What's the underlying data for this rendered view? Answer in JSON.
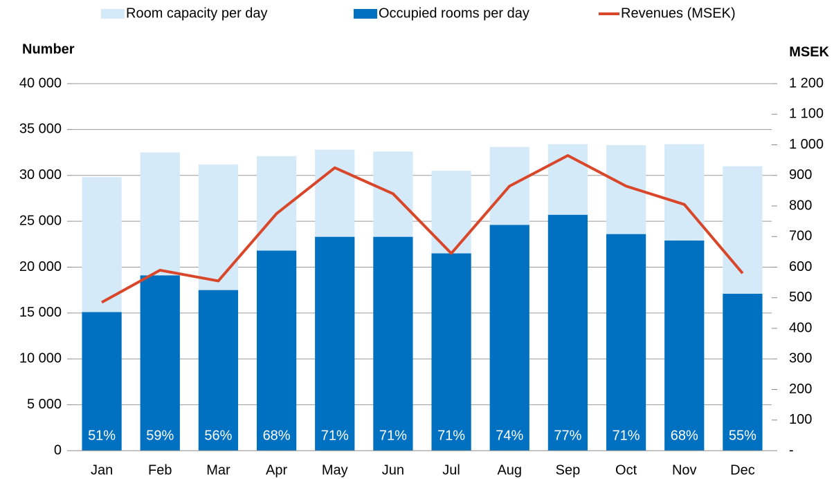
{
  "chart_data": {
    "type": "bar",
    "categories": [
      "Jan",
      "Feb",
      "Mar",
      "Apr",
      "May",
      "Jun",
      "Jul",
      "Aug",
      "Sep",
      "Oct",
      "Nov",
      "Dec"
    ],
    "series": [
      {
        "name": "Room capacity per day",
        "color": "#d5eaf8",
        "values": [
          29800,
          32500,
          31200,
          32100,
          32800,
          32600,
          30500,
          33100,
          33400,
          33300,
          33400,
          31000
        ]
      },
      {
        "name": "Occupied rooms per day",
        "color": "#0070c0",
        "values": [
          15100,
          19100,
          17500,
          21800,
          23300,
          23300,
          21500,
          24600,
          25700,
          23600,
          22900,
          17100
        ]
      },
      {
        "name": "Revenues (MSEK)",
        "color": "#d9472b",
        "type": "line",
        "axis": "y2",
        "values": [
          485,
          590,
          555,
          775,
          925,
          840,
          645,
          865,
          965,
          865,
          805,
          580
        ]
      }
    ],
    "annotations": [
      "51%",
      "59%",
      "56%",
      "68%",
      "71%",
      "71%",
      "71%",
      "74%",
      "77%",
      "71%",
      "68%",
      "55%"
    ],
    "ylabel": "Number",
    "y2label": "MSEK",
    "ylim": [
      0,
      40000
    ],
    "yticks": [
      0,
      {
        "value": 5000,
        "label": "5 000"
      },
      {
        "value": 10000,
        "label": "10 000"
      },
      {
        "value": 15000,
        "label": "15 000"
      },
      {
        "value": 20000,
        "label": "20 000"
      },
      {
        "value": 25000,
        "label": "25 000"
      },
      {
        "value": 30000,
        "label": "30 000"
      },
      {
        "value": 35000,
        "label": "35 000"
      },
      {
        "value": 40000,
        "label": "40 000"
      }
    ],
    "y2lim": [
      0,
      1200
    ],
    "y2ticks": [
      {
        "value": 0,
        "label": "-"
      },
      100,
      200,
      300,
      400,
      500,
      600,
      700,
      800,
      900,
      {
        "value": 1000,
        "label": "1 000"
      },
      {
        "value": 1100,
        "label": "1 100"
      },
      {
        "value": 1200,
        "label": "1 200"
      }
    ],
    "grid": true,
    "legend": "top"
  }
}
